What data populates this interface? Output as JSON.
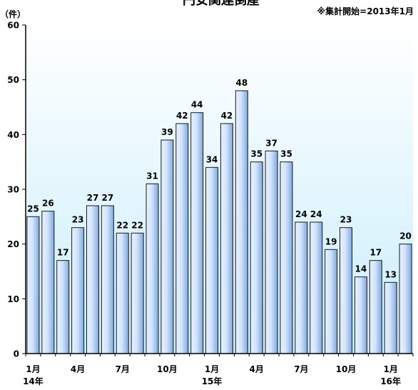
{
  "chart_data": {
    "type": "bar",
    "title": "円安関連倒産",
    "unit_label": "（件）",
    "note": "※集計開始=2013年1月",
    "ylim": [
      0,
      60
    ],
    "yticks": [
      0,
      10,
      20,
      30,
      40,
      50,
      60
    ],
    "grid": false,
    "categories": [
      "2014-01",
      "2014-02",
      "2014-03",
      "2014-04",
      "2014-05",
      "2014-06",
      "2014-07",
      "2014-08",
      "2014-09",
      "2014-10",
      "2014-11",
      "2014-12",
      "2015-01",
      "2015-02",
      "2015-03",
      "2015-04",
      "2015-05",
      "2015-06",
      "2015-07",
      "2015-08",
      "2015-09",
      "2015-10",
      "2015-11",
      "2015-12",
      "2016-01",
      "2016-02"
    ],
    "values": [
      25,
      26,
      17,
      23,
      27,
      27,
      22,
      22,
      31,
      39,
      42,
      44,
      34,
      42,
      48,
      35,
      37,
      35,
      24,
      24,
      19,
      23,
      14,
      17,
      13,
      20
    ],
    "month_labels": [
      {
        "index": 0,
        "label": "1月"
      },
      {
        "index": 3,
        "label": "4月"
      },
      {
        "index": 6,
        "label": "7月"
      },
      {
        "index": 9,
        "label": "10月"
      },
      {
        "index": 12,
        "label": "1月"
      },
      {
        "index": 15,
        "label": "4月"
      },
      {
        "index": 18,
        "label": "7月"
      },
      {
        "index": 21,
        "label": "10月"
      },
      {
        "index": 24,
        "label": "1月"
      }
    ],
    "year_labels": [
      {
        "index": 0,
        "label": "14年"
      },
      {
        "index": 12,
        "label": "15年"
      },
      {
        "index": 24,
        "label": "16年"
      }
    ],
    "colors": {
      "plot_bg_top": "#ffffff",
      "plot_bg_bottom": "#c9eefb",
      "bar_light": "#e6f1ff",
      "bar_dark": "#7fa8e0",
      "bar_stroke": "#1a1a1a",
      "axis": "#000000"
    }
  }
}
